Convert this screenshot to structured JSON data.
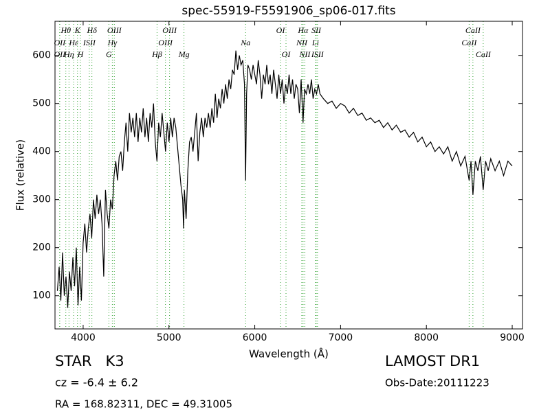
{
  "chart_data": {
    "type": "line",
    "title": "spec-55919-F5591906_sp06-017.fits",
    "x_label": "Wavelength (Å)",
    "y_label": "Flux (relative)",
    "xlim": [
      3672,
      9120
    ],
    "ylim": [
      31,
      671
    ],
    "xticks": [
      4000,
      5000,
      6000,
      7000,
      8000,
      9000
    ],
    "yticks": [
      100,
      200,
      300,
      400,
      500,
      600
    ],
    "color": "#000000",
    "line_color": "#2ca02c",
    "x": [
      3700,
      3720,
      3740,
      3760,
      3780,
      3800,
      3820,
      3840,
      3860,
      3880,
      3900,
      3920,
      3940,
      3960,
      3980,
      4000,
      4020,
      4040,
      4060,
      4080,
      4100,
      4120,
      4140,
      4160,
      4180,
      4200,
      4220,
      4240,
      4260,
      4280,
      4300,
      4320,
      4340,
      4360,
      4380,
      4400,
      4420,
      4440,
      4460,
      4480,
      4500,
      4520,
      4540,
      4560,
      4580,
      4600,
      4620,
      4640,
      4660,
      4680,
      4700,
      4720,
      4740,
      4760,
      4780,
      4800,
      4820,
      4840,
      4860,
      4880,
      4900,
      4920,
      4940,
      4960,
      4980,
      5000,
      5020,
      5040,
      5060,
      5080,
      5100,
      5120,
      5140,
      5160,
      5170,
      5180,
      5200,
      5220,
      5240,
      5260,
      5280,
      5300,
      5320,
      5340,
      5360,
      5380,
      5400,
      5420,
      5440,
      5460,
      5480,
      5500,
      5520,
      5540,
      5560,
      5580,
      5600,
      5620,
      5640,
      5660,
      5680,
      5700,
      5720,
      5740,
      5760,
      5780,
      5800,
      5820,
      5840,
      5860,
      5880,
      5893,
      5905,
      5920,
      5940,
      5960,
      5980,
      6000,
      6020,
      6040,
      6060,
      6080,
      6100,
      6120,
      6140,
      6160,
      6180,
      6200,
      6220,
      6240,
      6260,
      6280,
      6300,
      6320,
      6340,
      6360,
      6380,
      6400,
      6420,
      6440,
      6460,
      6480,
      6500,
      6520,
      6540,
      6563,
      6580,
      6600,
      6620,
      6640,
      6660,
      6680,
      6700,
      6720,
      6740,
      6760,
      6800,
      6850,
      6900,
      6950,
      7000,
      7050,
      7100,
      7150,
      7200,
      7250,
      7300,
      7350,
      7400,
      7450,
      7500,
      7550,
      7600,
      7650,
      7700,
      7750,
      7800,
      7850,
      7900,
      7950,
      8000,
      8050,
      8100,
      8150,
      8200,
      8250,
      8300,
      8350,
      8400,
      8450,
      8498,
      8520,
      8542,
      8570,
      8600,
      8630,
      8662,
      8690,
      8720,
      8750,
      8800,
      8850,
      8900,
      8950,
      9000
    ],
    "values": [
      110,
      160,
      90,
      190,
      100,
      140,
      75,
      150,
      110,
      180,
      120,
      200,
      80,
      160,
      90,
      210,
      250,
      190,
      240,
      270,
      220,
      300,
      260,
      310,
      270,
      300,
      250,
      140,
      320,
      270,
      240,
      300,
      280,
      350,
      380,
      340,
      390,
      400,
      360,
      420,
      460,
      400,
      480,
      440,
      470,
      430,
      480,
      420,
      470,
      440,
      490,
      430,
      470,
      420,
      480,
      450,
      500,
      420,
      380,
      460,
      430,
      480,
      440,
      400,
      460,
      420,
      470,
      430,
      470,
      450,
      410,
      370,
      330,
      300,
      240,
      320,
      260,
      360,
      420,
      430,
      400,
      440,
      480,
      380,
      440,
      470,
      430,
      470,
      450,
      480,
      450,
      490,
      460,
      520,
      470,
      510,
      490,
      530,
      500,
      540,
      510,
      550,
      530,
      570,
      560,
      610,
      570,
      600,
      580,
      590,
      540,
      340,
      520,
      580,
      570,
      550,
      580,
      560,
      540,
      590,
      560,
      510,
      560,
      540,
      580,
      540,
      560,
      520,
      570,
      540,
      510,
      560,
      520,
      550,
      500,
      540,
      520,
      560,
      520,
      550,
      510,
      540,
      530,
      480,
      550,
      460,
      530,
      520,
      540,
      520,
      550,
      510,
      530,
      520,
      540,
      520,
      510,
      500,
      505,
      490,
      500,
      495,
      480,
      490,
      475,
      480,
      465,
      470,
      460,
      465,
      450,
      460,
      445,
      455,
      440,
      445,
      430,
      440,
      420,
      430,
      410,
      420,
      400,
      410,
      395,
      410,
      380,
      400,
      370,
      390,
      340,
      380,
      310,
      380,
      360,
      390,
      320,
      380,
      360,
      385,
      360,
      380,
      350,
      380,
      370
    ],
    "line_label_rows": [
      [
        {
          "label": "Hθ",
          "x": 3798
        },
        {
          "label": "K",
          "x": 3934
        },
        {
          "label": "Hδ",
          "x": 4102
        },
        {
          "label": "OIII",
          "x": 4363
        },
        {
          "label": "OIII",
          "x": 5007
        },
        {
          "label": "OI",
          "x": 6300
        },
        {
          "label": "Hα",
          "x": 6563
        },
        {
          "label": "SII",
          "x": 6716
        },
        {
          "label": "CaII",
          "x": 8542
        }
      ],
      [
        {
          "label": "OII",
          "x": 3727
        },
        {
          "label": "Hε",
          "x": 3889
        },
        {
          "label": "ISII",
          "x": 4072
        },
        {
          "label": "Hγ",
          "x": 4340
        },
        {
          "label": "OIII",
          "x": 4959
        },
        {
          "label": "NII",
          "x": 6548
        },
        {
          "label": "Li",
          "x": 6708
        },
        {
          "label": "CaII",
          "x": 8498
        },
        {
          "label": "Na",
          "x": 5893
        }
      ],
      [
        {
          "label": "OII",
          "x": 3727
        },
        {
          "label": "Hη",
          "x": 3835
        },
        {
          "label": "H",
          "x": 3968
        },
        {
          "label": "G",
          "x": 4300
        },
        {
          "label": "Hβ",
          "x": 4861
        },
        {
          "label": "Mg",
          "x": 5175
        },
        {
          "label": "OI",
          "x": 6364
        },
        {
          "label": "NII",
          "x": 6583
        },
        {
          "label": "ISII",
          "x": 6731
        },
        {
          "label": "CaII",
          "x": 8662
        }
      ]
    ],
    "object": "STAR   K3",
    "cz": "cz = -6.4 ± 6.2",
    "coords": "RA = 168.82311, DEC = 49.31005",
    "survey": "LAMOST DR1",
    "obs_date": "Obs-Date:20111223"
  }
}
